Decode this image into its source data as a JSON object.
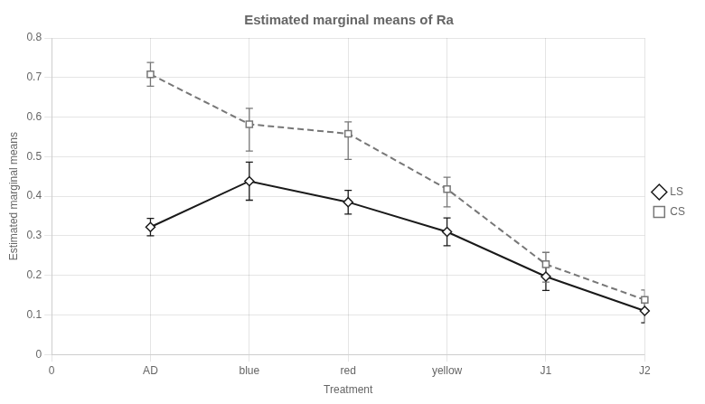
{
  "chart_data": {
    "type": "line",
    "title": "Estimated marginal means of Ra",
    "x_label": "Treatment",
    "y_label": "Estimated marginal means",
    "categories": [
      "0",
      "AD",
      "blue",
      "red",
      "yellow",
      "J1",
      "J2"
    ],
    "series": [
      {
        "name": "LS",
        "color": "#1a1a1a",
        "marker": "diamond",
        "line_style": "solid",
        "values": [
          null,
          0.322,
          0.438,
          0.385,
          0.31,
          0.197,
          0.11
        ],
        "error_lower": [
          null,
          0.022,
          0.048,
          0.03,
          0.035,
          0.035,
          0.03
        ],
        "error_upper": [
          null,
          0.022,
          0.048,
          0.03,
          0.035,
          0.025,
          0.03
        ]
      },
      {
        "name": "CS",
        "color": "#777777",
        "marker": "square",
        "line_style": "dashed",
        "values": [
          null,
          0.708,
          0.582,
          0.558,
          0.418,
          0.228,
          0.138
        ],
        "error_lower": [
          null,
          0.03,
          0.068,
          0.065,
          0.045,
          0.045,
          0.025
        ],
        "error_upper": [
          null,
          0.03,
          0.04,
          0.03,
          0.03,
          0.03,
          0.025
        ]
      }
    ],
    "ylim": [
      0,
      0.8
    ],
    "yticks": [
      0,
      0.1,
      0.2,
      0.3,
      0.4,
      0.5,
      0.6,
      0.7,
      0.8
    ],
    "grid": true,
    "legend": "right"
  }
}
